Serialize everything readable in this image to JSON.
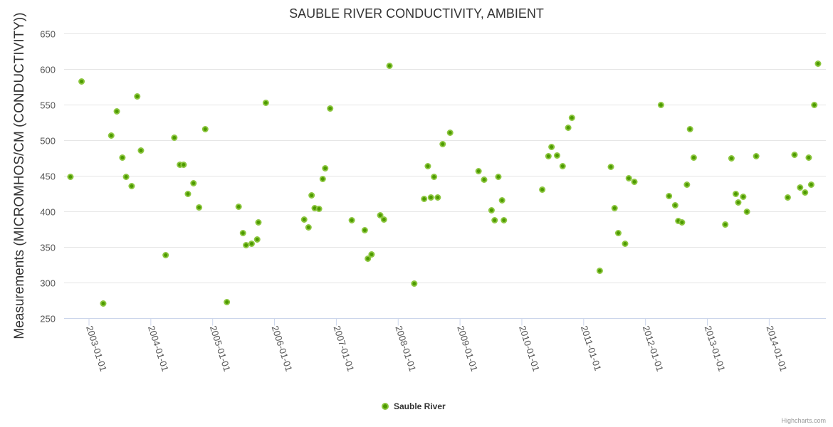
{
  "chart_data": {
    "type": "scatter",
    "title": "SAUBLE RIVER CONDUCTIVITY, AMBIENT",
    "xlabel": "",
    "ylabel": "Measurements (MICROMHOS/CM (CONDUCTIVITY))",
    "x_unit": "decimal year",
    "xlim": [
      2002.597,
      2014.917
    ],
    "ylim": [
      250,
      650
    ],
    "yticks": [
      250,
      300,
      350,
      400,
      450,
      500,
      550,
      600,
      650
    ],
    "xticks": [
      {
        "value": 2003,
        "label": "2003-01-01"
      },
      {
        "value": 2004,
        "label": "2004-01-01"
      },
      {
        "value": 2005,
        "label": "2005-01-01"
      },
      {
        "value": 2006,
        "label": "2006-01-01"
      },
      {
        "value": 2007,
        "label": "2007-01-01"
      },
      {
        "value": 2008,
        "label": "2008-01-01"
      },
      {
        "value": 2009,
        "label": "2009-01-01"
      },
      {
        "value": 2010,
        "label": "2010-01-01"
      },
      {
        "value": 2011,
        "label": "2011-01-01"
      },
      {
        "value": 2012,
        "label": "2012-01-01"
      },
      {
        "value": 2013,
        "label": "2013-01-01"
      },
      {
        "value": 2014,
        "label": "2014-01-01"
      }
    ],
    "grid": true,
    "legend_position": "bottom-center",
    "series": [
      {
        "name": "Sauble River",
        "color": "#4d9a00",
        "outline": "#8cc63f",
        "points": [
          [
            2002.7,
            449
          ],
          [
            2002.88,
            583
          ],
          [
            2003.23,
            271
          ],
          [
            2003.36,
            507
          ],
          [
            2003.45,
            541
          ],
          [
            2003.54,
            476
          ],
          [
            2003.6,
            449
          ],
          [
            2003.69,
            436
          ],
          [
            2003.78,
            562
          ],
          [
            2003.84,
            486
          ],
          [
            2004.24,
            339
          ],
          [
            2004.38,
            504
          ],
          [
            2004.47,
            466
          ],
          [
            2004.53,
            466
          ],
          [
            2004.6,
            425
          ],
          [
            2004.69,
            440
          ],
          [
            2004.78,
            406
          ],
          [
            2004.88,
            516
          ],
          [
            2005.23,
            273
          ],
          [
            2005.42,
            407
          ],
          [
            2005.49,
            370
          ],
          [
            2005.54,
            353
          ],
          [
            2005.63,
            355
          ],
          [
            2005.72,
            361
          ],
          [
            2005.74,
            385
          ],
          [
            2005.86,
            553
          ],
          [
            2006.48,
            389
          ],
          [
            2006.55,
            378
          ],
          [
            2006.6,
            423
          ],
          [
            2006.65,
            405
          ],
          [
            2006.72,
            404
          ],
          [
            2006.78,
            446
          ],
          [
            2006.82,
            461
          ],
          [
            2006.9,
            545
          ],
          [
            2007.25,
            388
          ],
          [
            2007.46,
            374
          ],
          [
            2007.51,
            334
          ],
          [
            2007.57,
            340
          ],
          [
            2007.71,
            395
          ],
          [
            2007.77,
            389
          ],
          [
            2007.86,
            605
          ],
          [
            2008.26,
            299
          ],
          [
            2008.42,
            418
          ],
          [
            2008.48,
            464
          ],
          [
            2008.53,
            420
          ],
          [
            2008.58,
            449
          ],
          [
            2008.64,
            420
          ],
          [
            2008.72,
            495
          ],
          [
            2008.84,
            511
          ],
          [
            2009.3,
            457
          ],
          [
            2009.39,
            445
          ],
          [
            2009.51,
            402
          ],
          [
            2009.56,
            388
          ],
          [
            2009.62,
            449
          ],
          [
            2009.68,
            416
          ],
          [
            2009.71,
            388
          ],
          [
            2010.33,
            431
          ],
          [
            2010.43,
            478
          ],
          [
            2010.48,
            491
          ],
          [
            2010.57,
            479
          ],
          [
            2010.66,
            464
          ],
          [
            2010.75,
            518
          ],
          [
            2010.81,
            532
          ],
          [
            2011.26,
            317
          ],
          [
            2011.44,
            463
          ],
          [
            2011.5,
            405
          ],
          [
            2011.56,
            370
          ],
          [
            2011.67,
            355
          ],
          [
            2011.73,
            447
          ],
          [
            2011.82,
            442
          ],
          [
            2012.25,
            550
          ],
          [
            2012.38,
            422
          ],
          [
            2012.48,
            409
          ],
          [
            2012.53,
            387
          ],
          [
            2012.59,
            385
          ],
          [
            2012.67,
            438
          ],
          [
            2012.72,
            516
          ],
          [
            2012.78,
            476
          ],
          [
            2013.29,
            382
          ],
          [
            2013.39,
            475
          ],
          [
            2013.46,
            425
          ],
          [
            2013.5,
            413
          ],
          [
            2013.58,
            421
          ],
          [
            2013.64,
            400
          ],
          [
            2013.79,
            478
          ],
          [
            2014.3,
            420
          ],
          [
            2014.41,
            480
          ],
          [
            2014.5,
            434
          ],
          [
            2014.58,
            427
          ],
          [
            2014.64,
            476
          ],
          [
            2014.68,
            438
          ],
          [
            2014.73,
            550
          ],
          [
            2014.79,
            608
          ]
        ]
      }
    ],
    "credit": "Highcharts.com"
  }
}
